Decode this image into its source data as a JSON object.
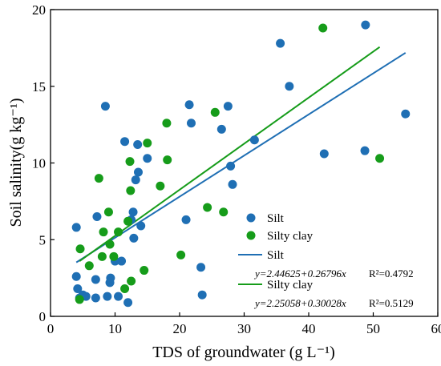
{
  "chart_data": {
    "type": "scatter",
    "xlabel": "TDS of groundwater (g L⁻¹)",
    "ylabel": "Soil salinity(g kg⁻¹)",
    "xlim": [
      0,
      60
    ],
    "ylim": [
      0,
      20
    ],
    "x_ticks": [
      "0",
      "10",
      "20",
      "30",
      "40",
      "50",
      "60"
    ],
    "y_ticks": [
      "0",
      "5",
      "10",
      "15",
      "20"
    ],
    "grid": false,
    "legend_position": "bottom-right",
    "series": [
      {
        "name": "Silt",
        "color": "#1f6fb4",
        "points": [
          [
            4.0,
            5.8
          ],
          [
            4.0,
            2.6
          ],
          [
            4.2,
            1.8
          ],
          [
            4.5,
            1.2
          ],
          [
            5.0,
            1.4
          ],
          [
            5.5,
            1.3
          ],
          [
            7.0,
            2.4
          ],
          [
            7.0,
            1.2
          ],
          [
            7.2,
            6.5
          ],
          [
            8.5,
            13.7
          ],
          [
            8.8,
            1.3
          ],
          [
            9.2,
            2.2
          ],
          [
            9.3,
            2.5
          ],
          [
            10.0,
            3.6
          ],
          [
            10.5,
            1.3
          ],
          [
            11.0,
            3.6
          ],
          [
            11.5,
            11.4
          ],
          [
            12.0,
            0.9
          ],
          [
            12.5,
            6.3
          ],
          [
            12.8,
            6.8
          ],
          [
            12.9,
            5.1
          ],
          [
            13.2,
            8.9
          ],
          [
            13.5,
            11.2
          ],
          [
            13.6,
            9.4
          ],
          [
            14.0,
            5.9
          ],
          [
            15.0,
            10.3
          ],
          [
            21.0,
            6.3
          ],
          [
            21.5,
            13.8
          ],
          [
            21.8,
            12.6
          ],
          [
            23.3,
            3.2
          ],
          [
            23.5,
            1.4
          ],
          [
            26.5,
            12.2
          ],
          [
            27.5,
            13.7
          ],
          [
            27.9,
            9.8
          ],
          [
            28.2,
            8.6
          ],
          [
            31.6,
            11.5
          ],
          [
            35.6,
            17.8
          ],
          [
            37.0,
            15.0
          ],
          [
            42.4,
            10.6
          ],
          [
            48.7,
            10.8
          ],
          [
            48.8,
            19.0
          ],
          [
            55.0,
            13.2
          ]
        ]
      },
      {
        "name": "Silty clay",
        "color": "#169c1a",
        "points": [
          [
            4.5,
            1.1
          ],
          [
            4.6,
            4.4
          ],
          [
            6.0,
            3.3
          ],
          [
            7.5,
            9.0
          ],
          [
            8.0,
            3.9
          ],
          [
            8.2,
            5.5
          ],
          [
            9.0,
            6.8
          ],
          [
            9.2,
            4.7
          ],
          [
            9.8,
            3.9
          ],
          [
            10.5,
            5.5
          ],
          [
            11.5,
            1.8
          ],
          [
            12.0,
            6.2
          ],
          [
            12.3,
            10.1
          ],
          [
            12.4,
            8.2
          ],
          [
            12.5,
            2.3
          ],
          [
            14.5,
            3.0
          ],
          [
            15.0,
            11.3
          ],
          [
            17.0,
            8.5
          ],
          [
            18.0,
            12.6
          ],
          [
            18.1,
            10.2
          ],
          [
            20.2,
            4.0
          ],
          [
            24.3,
            7.1
          ],
          [
            25.5,
            13.3
          ],
          [
            26.8,
            6.8
          ],
          [
            42.2,
            18.8
          ],
          [
            51.0,
            10.3
          ]
        ]
      }
    ],
    "fits": [
      {
        "name": "Silt",
        "color": "#1f6fb4",
        "x_range": [
          4,
          55
        ],
        "intercept": 2.44625,
        "slope": 0.26796,
        "equation": "y=2.44625+0.26796x",
        "r2": "R²=0.4792"
      },
      {
        "name": "Silty clay",
        "color": "#169c1a",
        "x_range": [
          4.5,
          51
        ],
        "intercept": 2.25058,
        "slope": 0.30028,
        "equation": "y=2.25058+0.30028x",
        "r2": "R²=0.5129"
      }
    ]
  }
}
